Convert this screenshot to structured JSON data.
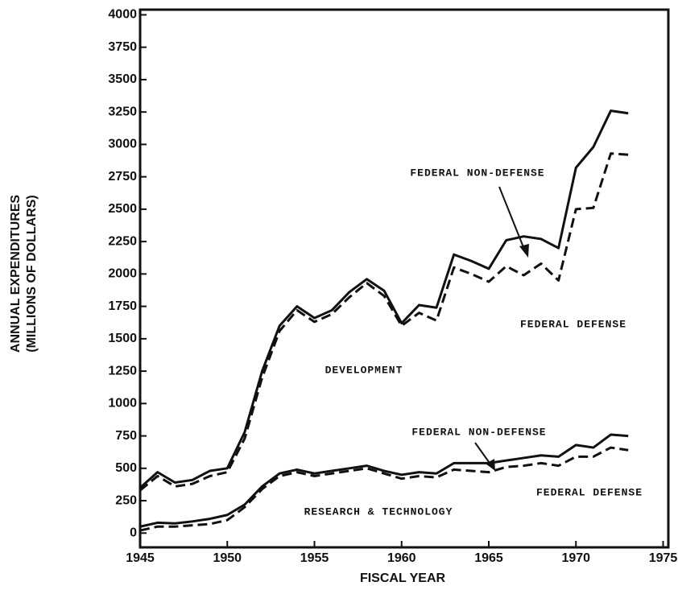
{
  "chart_data": {
    "type": "line",
    "y_label": [
      "ANNUAL EXPENDITURES",
      "(MILLIONS OF DOLLARS)"
    ],
    "x_label": "FISCAL YEAR",
    "annotations": [
      "FEDERAL NON-DEFENSE",
      "FEDERAL DEFENSE",
      "DEVELOPMENT",
      "FEDERAL NON-DEFENSE",
      "FEDERAL DEFENSE",
      "RESEARCH & TECHNOLOGY"
    ],
    "x": [
      1945,
      1946,
      1947,
      1948,
      1949,
      1950,
      1951,
      1952,
      1953,
      1954,
      1955,
      1956,
      1957,
      1958,
      1959,
      1960,
      1961,
      1962,
      1963,
      1964,
      1965,
      1966,
      1967,
      1968,
      1969,
      1970,
      1971,
      1972,
      1973
    ],
    "series": [
      {
        "color": "#111111",
        "dash": false,
        "values": [
          350,
          470,
          390,
          410,
          480,
          500,
          780,
          1250,
          1600,
          1750,
          1660,
          1720,
          1860,
          1960,
          1870,
          1620,
          1760,
          1740,
          2150,
          2100,
          2040,
          2260,
          2290,
          2270,
          2200,
          2820,
          2980,
          3260,
          3240
        ]
      },
      {
        "color": "#111111",
        "dash": true,
        "values": [
          330,
          440,
          360,
          380,
          440,
          470,
          730,
          1200,
          1560,
          1720,
          1630,
          1690,
          1820,
          1930,
          1830,
          1600,
          1700,
          1640,
          2050,
          2000,
          1940,
          2060,
          1990,
          2080,
          1950,
          2500,
          2510,
          2930,
          2920
        ]
      },
      {
        "color": "#111111",
        "dash": false,
        "values": [
          50,
          80,
          75,
          90,
          110,
          140,
          220,
          360,
          460,
          490,
          460,
          480,
          500,
          520,
          480,
          450,
          470,
          460,
          540,
          540,
          540,
          560,
          580,
          600,
          590,
          680,
          660,
          760,
          750
        ]
      },
      {
        "color": "#111111",
        "dash": true,
        "values": [
          20,
          50,
          50,
          60,
          70,
          100,
          200,
          340,
          440,
          470,
          440,
          460,
          480,
          500,
          460,
          420,
          440,
          430,
          490,
          480,
          470,
          510,
          520,
          540,
          520,
          590,
          590,
          660,
          640
        ]
      }
    ],
    "xlim": [
      1945,
      1975.3
    ],
    "xticks": [
      1945,
      1950,
      1955,
      1960,
      1965,
      1970,
      1975
    ],
    "ylim": [
      -110,
      4040
    ],
    "yticks": [
      0,
      250,
      500,
      750,
      1000,
      1250,
      1500,
      1750,
      2000,
      2250,
      2500,
      2750,
      3000,
      3250,
      3500,
      3750,
      4000
    ],
    "grid": false
  }
}
